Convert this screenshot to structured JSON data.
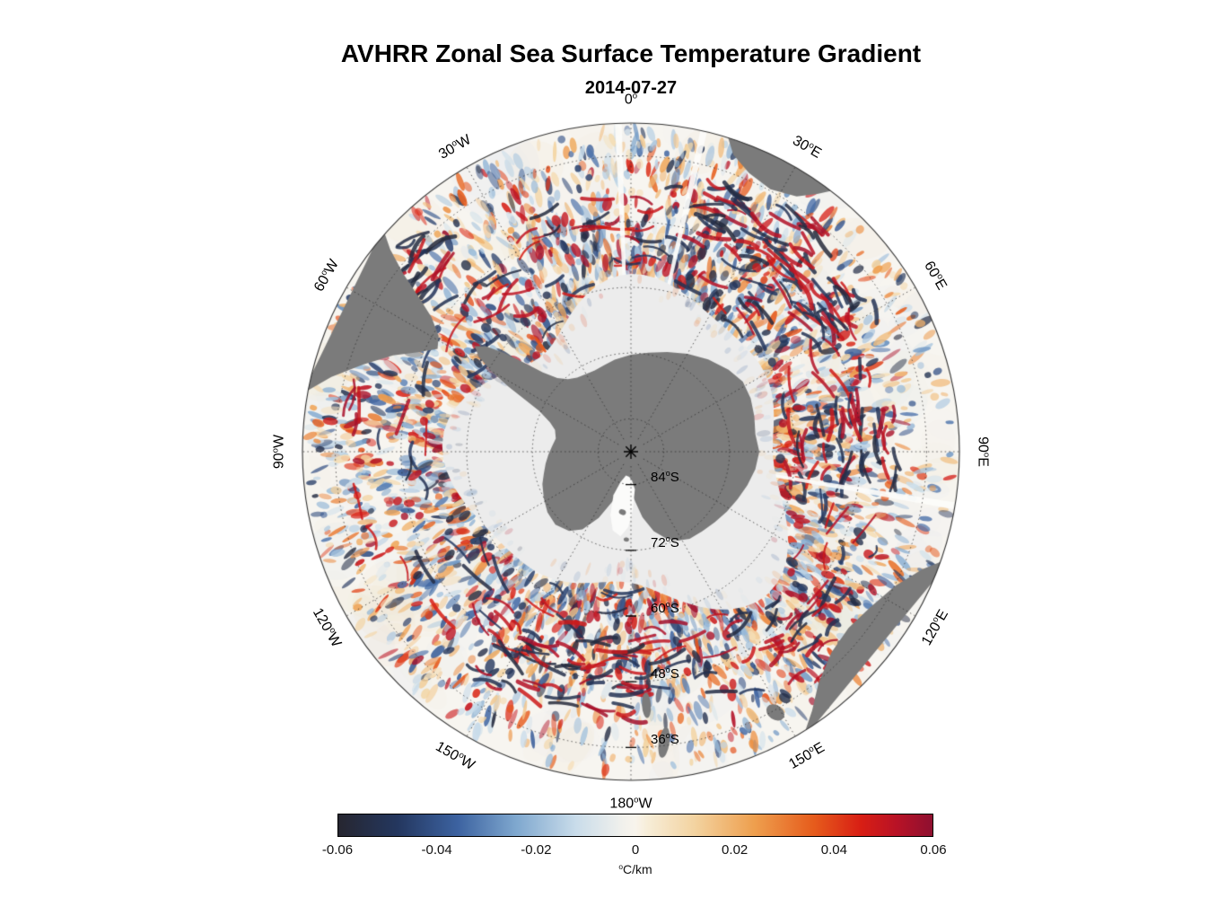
{
  "title": "AVHRR Zonal Sea Surface Temperature Gradient",
  "subtitle": "2014-07-27",
  "chart_data": {
    "type": "heatmap",
    "map_projection": "south polar stereographic",
    "region": "Southern Ocean / Antarctica",
    "variable": "Zonal sea surface temperature gradient",
    "date": "2014-07-27",
    "units_sup": "o",
    "units_main": "C/km",
    "deg_symbol": "o",
    "value_range": [
      -0.06,
      0.06
    ],
    "colorbar_ticks": [
      "-0.06",
      "-0.04",
      "-0.02",
      "0",
      "0.02",
      "0.04",
      "0.06"
    ],
    "colorbar_stops": [
      {
        "pos": 0.0,
        "color": "#262630"
      },
      {
        "pos": 0.1,
        "color": "#24375f"
      },
      {
        "pos": 0.2,
        "color": "#3c62a0"
      },
      {
        "pos": 0.3,
        "color": "#7fa8cf"
      },
      {
        "pos": 0.4,
        "color": "#c9dcea"
      },
      {
        "pos": 0.48,
        "color": "#f2f1ec"
      },
      {
        "pos": 0.5,
        "color": "#f8f4ec"
      },
      {
        "pos": 0.52,
        "color": "#f7edd8"
      },
      {
        "pos": 0.6,
        "color": "#f3d3a0"
      },
      {
        "pos": 0.7,
        "color": "#ee9f4e"
      },
      {
        "pos": 0.8,
        "color": "#e65c1c"
      },
      {
        "pos": 0.88,
        "color": "#d81e14"
      },
      {
        "pos": 0.94,
        "color": "#b81226"
      },
      {
        "pos": 1.0,
        "color": "#8e1030"
      }
    ],
    "longitude_labels": [
      {
        "text": "0",
        "dir": "",
        "az": 0
      },
      {
        "text": "30",
        "dir": "E",
        "az": 30
      },
      {
        "text": "60",
        "dir": "E",
        "az": 60
      },
      {
        "text": "90",
        "dir": "E",
        "az": 90
      },
      {
        "text": "120",
        "dir": "E",
        "az": 120
      },
      {
        "text": "150",
        "dir": "E",
        "az": 150
      },
      {
        "text": "180",
        "dir": "W",
        "az": 180
      },
      {
        "text": "150",
        "dir": "W",
        "az": -150
      },
      {
        "text": "120",
        "dir": "W",
        "az": -120
      },
      {
        "text": "90",
        "dir": "W",
        "az": -90
      },
      {
        "text": "60",
        "dir": "W",
        "az": -60
      },
      {
        "text": "30",
        "dir": "W",
        "az": -30
      }
    ],
    "latitude_labels": [
      {
        "text": "84",
        "dir": "S",
        "lat": 84
      },
      {
        "text": "72",
        "dir": "S",
        "lat": 72
      },
      {
        "text": "60",
        "dir": "S",
        "lat": 60
      },
      {
        "text": "48",
        "dir": "S",
        "lat": 48
      },
      {
        "text": "36",
        "dir": "S",
        "lat": 36
      }
    ],
    "outer_latitude_deg": 30,
    "grid_interval_lon_deg": 30,
    "grid_interval_lat_deg": 12,
    "map_features": [
      "Antarctica",
      "Antarctic Peninsula",
      "sea ice zone",
      "South America",
      "Africa",
      "Australia",
      "Tasmania",
      "New Zealand"
    ],
    "colors": {
      "land": "#7b7b7b",
      "sea_ice": "#ececec",
      "ocean": "#f7f5f0",
      "grid": "#2e2e2e",
      "outline": "#333333",
      "background": "#ffffff",
      "text": "#000000"
    }
  }
}
